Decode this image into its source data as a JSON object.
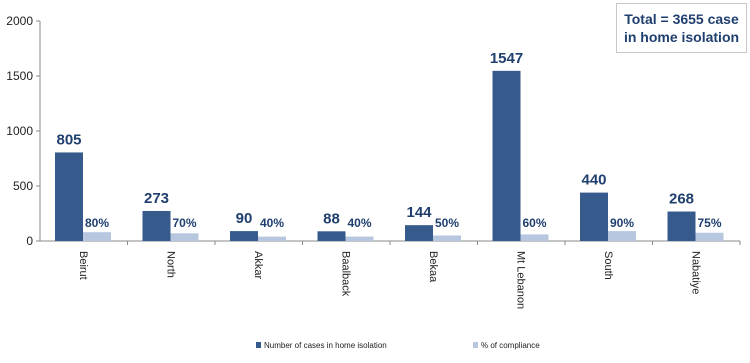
{
  "total_box": {
    "text": "Total = 3655 case in home isolation"
  },
  "chart_data": {
    "type": "bar",
    "categories": [
      "Beirut",
      "North",
      "Akkar",
      "Baalback",
      "Bekaa",
      "Mt Lebanon",
      "South",
      "Nabatiye"
    ],
    "series": [
      {
        "name": "Number of cases in home isolation",
        "values": [
          805,
          273,
          90,
          88,
          144,
          1547,
          440,
          268
        ],
        "color": "#375a8c"
      },
      {
        "name": "% of compliance",
        "values": [
          80,
          70,
          40,
          40,
          50,
          60,
          90,
          75
        ],
        "color": "#b7c7df"
      }
    ],
    "data_labels_count": [
      "805",
      "273",
      "90",
      "88",
      "144",
      "1547",
      "440",
      "268"
    ],
    "data_labels_pct": [
      "80%",
      "70%",
      "40%",
      "40%",
      "50%",
      "60%",
      "90%",
      "75%"
    ],
    "yticks": [
      "0",
      "500",
      "1000",
      "1500",
      "2000"
    ],
    "ylim": [
      0,
      2000
    ],
    "legend_position": "bottom",
    "grid": false
  }
}
